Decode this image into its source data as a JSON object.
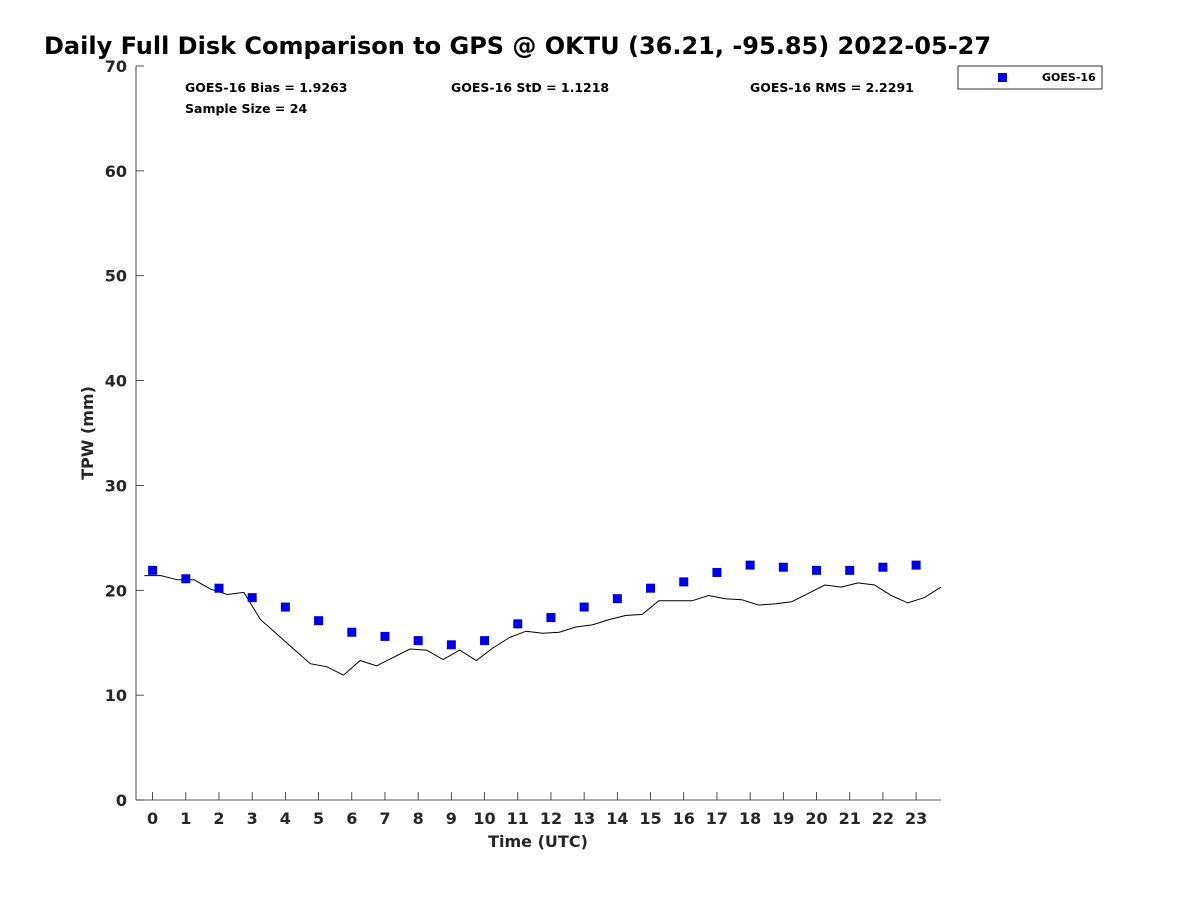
{
  "chart_data": {
    "type": "scatter",
    "title": "Daily Full Disk Comparison to GPS @ OKTU (36.21, -95.85) 2022-05-27",
    "xlabel": "Time (UTC)",
    "ylabel": "TPW (mm)",
    "xlim": [
      -0.5,
      23.75
    ],
    "ylim": [
      0,
      70
    ],
    "xticks": [
      0,
      1,
      2,
      3,
      4,
      5,
      6,
      7,
      8,
      9,
      10,
      11,
      12,
      13,
      14,
      15,
      16,
      17,
      18,
      19,
      20,
      21,
      22,
      23
    ],
    "yticks": [
      0,
      10,
      20,
      30,
      40,
      50,
      60,
      70
    ],
    "grid": false,
    "legend_position": "top-right, outside plot",
    "stats": [
      "GOES-16 Bias = 1.9263",
      "GOES-16 StD = 1.1218",
      "GOES-16 RMS = 2.2291",
      "Sample Size = 24"
    ],
    "series": [
      {
        "name": "GOES-16",
        "kind": "marker",
        "marker": "square",
        "color": "#0000e6",
        "x": [
          0,
          1,
          2,
          3,
          4,
          5,
          6,
          7,
          8,
          9,
          10,
          11,
          12,
          13,
          14,
          15,
          16,
          17,
          18,
          19,
          20,
          21,
          22,
          23
        ],
        "y": [
          21.9,
          21.1,
          20.2,
          19.3,
          18.4,
          17.1,
          16.0,
          15.6,
          15.2,
          14.8,
          15.2,
          16.8,
          17.4,
          18.4,
          19.2,
          20.2,
          20.8,
          21.7,
          22.4,
          22.2,
          21.9,
          21.9,
          22.2,
          22.4
        ]
      },
      {
        "kind": "line",
        "color": "#000000",
        "x": [
          -0.25,
          0.25,
          0.75,
          1.25,
          1.75,
          2.25,
          2.75,
          3.25,
          3.75,
          4.25,
          4.75,
          5.25,
          5.75,
          6.25,
          6.75,
          7.25,
          7.75,
          8.25,
          8.75,
          9.25,
          9.75,
          10.25,
          10.75,
          11.25,
          11.75,
          12.25,
          12.75,
          13.25,
          13.75,
          14.25,
          14.75,
          15.25,
          15.75,
          16.25,
          16.75,
          17.25,
          17.75,
          18.25,
          18.75,
          19.25,
          19.75,
          20.25,
          20.75,
          21.25,
          21.75,
          22.25,
          22.75,
          23.25,
          23.75
        ],
        "y": [
          21.4,
          21.4,
          21.0,
          21.0,
          20.1,
          19.6,
          19.8,
          17.2,
          15.8,
          14.4,
          13.0,
          12.7,
          11.9,
          13.3,
          12.8,
          13.6,
          14.4,
          14.3,
          13.4,
          14.3,
          13.3,
          14.5,
          15.5,
          16.1,
          15.9,
          16.0,
          16.5,
          16.7,
          17.2,
          17.6,
          17.7,
          19.0,
          19.0,
          19.0,
          19.5,
          19.2,
          19.1,
          18.6,
          18.7,
          18.9,
          19.7,
          20.5,
          20.3,
          20.7,
          20.5,
          19.5,
          18.8,
          19.3,
          20.3
        ]
      }
    ]
  }
}
